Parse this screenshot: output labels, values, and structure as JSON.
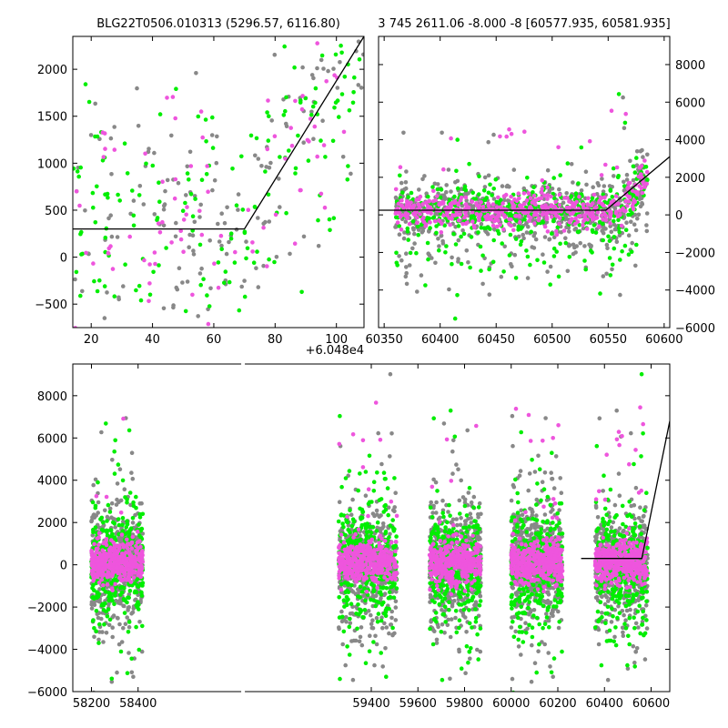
{
  "colors": {
    "green": "#00ee00",
    "magenta": "#ee55dd",
    "gray": "#888888",
    "fit": "#000000"
  },
  "chart_data": [
    {
      "type": "scatter",
      "title": "BLG22T0506.010313 (5296.57, 6116.80)",
      "xlim": [
        14,
        109
      ],
      "ylim": [
        -750,
        2350
      ],
      "x_ticks": [
        20,
        40,
        60,
        80,
        100
      ],
      "x_tick_labels": [
        "20",
        "40",
        "60",
        "80",
        "100"
      ],
      "y_ticks": [
        -500,
        0,
        500,
        1000,
        1500,
        2000
      ],
      "y_tick_labels": [
        "−500",
        "0",
        "500",
        "1000",
        "1500",
        "2000"
      ],
      "offset_label": "+6.048e4",
      "fit_line": {
        "x": [
          14,
          70,
          109
        ],
        "y": [
          300,
          300,
          2350
        ]
      },
      "point_model": {
        "x_range": [
          14,
          109
        ],
        "base": 280,
        "rise_start": 70,
        "slope": 52,
        "scatter": 420,
        "counts": [
          160,
          180,
          90
        ]
      }
    },
    {
      "type": "scatter",
      "title": "3 745 2611.06 -8.000 -8 [60577.935, 60581.935]",
      "xlim": [
        60345,
        60605
      ],
      "ylim": [
        -6000,
        9500
      ],
      "x_ticks": [
        60350,
        60400,
        60450,
        60500,
        60550,
        60600
      ],
      "x_tick_labels": [
        "60350",
        "60400",
        "60450",
        "60500",
        "60550",
        "60600"
      ],
      "y_ticks": [
        -6000,
        -4000,
        -2000,
        0,
        2000,
        4000,
        6000,
        8000
      ],
      "y_tick_labels": [
        "−6000",
        "−4000",
        "−2000",
        "0",
        "2000",
        "4000",
        "6000",
        "8000"
      ],
      "fit_line": {
        "x": [
          60345,
          60548,
          60605
        ],
        "y": [
          250,
          250,
          3100
        ]
      },
      "point_model": {
        "x_range": [
          60360,
          60585
        ],
        "base": 200,
        "rise_start": 60560,
        "slope": 80,
        "scatter": 500,
        "counts": [
          700,
          450,
          450
        ]
      }
    },
    {
      "type": "scatter",
      "title": "",
      "xlim": [
        58120,
        60680
      ],
      "ylim": [
        -6000,
        9500
      ],
      "x_ticks": [
        58200,
        58400,
        59400,
        59600,
        59800,
        60000,
        60200,
        60400,
        60600
      ],
      "x_tick_labels": [
        "58200",
        "58400",
        "59400",
        "59600",
        "59800",
        "60000",
        "60200",
        "60400",
        "60600"
      ],
      "y_ticks": [
        -6000,
        -4000,
        -2000,
        0,
        2000,
        4000,
        6000,
        8000
      ],
      "y_tick_labels": [
        "−6000",
        "−4000",
        "−2000",
        "0",
        "2000",
        "4000",
        "6000",
        "8000"
      ],
      "axis_break": [
        58460,
        59240
      ],
      "fit_line": {
        "x": [
          60300,
          60560,
          60680
        ],
        "y": [
          300,
          300,
          6800
        ]
      },
      "seasons": [
        [
          58200,
          58420
        ],
        [
          59260,
          59510
        ],
        [
          59650,
          59870
        ],
        [
          60000,
          60220
        ],
        [
          60360,
          60585
        ]
      ],
      "point_model": {
        "base": 100,
        "scatter": 550,
        "counts_per_season": [
          550,
          380,
          380
        ]
      }
    }
  ]
}
